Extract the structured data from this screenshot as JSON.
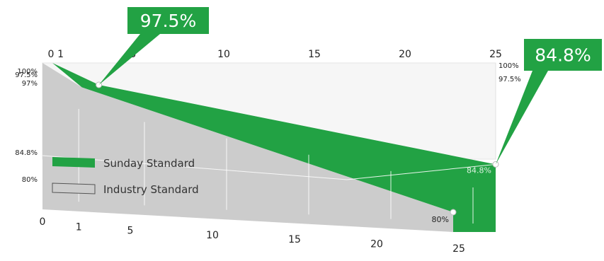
{
  "chart_data": {
    "type": "area",
    "x_ticks": [
      "0",
      "1",
      "5",
      "10",
      "15",
      "20",
      "25"
    ],
    "y_ticks_left": [
      "100%",
      "97.5%",
      "97%",
      "84.8%",
      "80%"
    ],
    "y_ticks_right": [
      "100%",
      "97.5%"
    ],
    "series": [
      {
        "name": "Sunday Standard",
        "color": "#22a244",
        "points": [
          {
            "x": 0,
            "y": 100
          },
          {
            "x": 1,
            "y": 97.5
          },
          {
            "x": 25,
            "y": 84.8
          }
        ]
      },
      {
        "name": "Industry Standard",
        "color": "#cccccc",
        "points": [
          {
            "x": 0,
            "y": 100
          },
          {
            "x": 1,
            "y": 97
          },
          {
            "x": 25,
            "y": 80
          }
        ]
      }
    ],
    "callouts": [
      {
        "label": "97.5%",
        "x": 1,
        "y": 97.5
      },
      {
        "label": "84.8%",
        "x": 25,
        "y": 84.8
      }
    ],
    "point_labels": [
      {
        "label": "84.8%",
        "x": 25,
        "y": 84.8
      },
      {
        "label": "80%",
        "x": 25,
        "y": 80
      }
    ],
    "legend": {
      "position": "left",
      "items": [
        "Sunday Standard",
        "Industry Standard"
      ]
    },
    "colors": {
      "accent": "#22a244",
      "industry": "#cccccc",
      "grid": "#ffffff",
      "back_wall": "#f6f6f6"
    }
  }
}
